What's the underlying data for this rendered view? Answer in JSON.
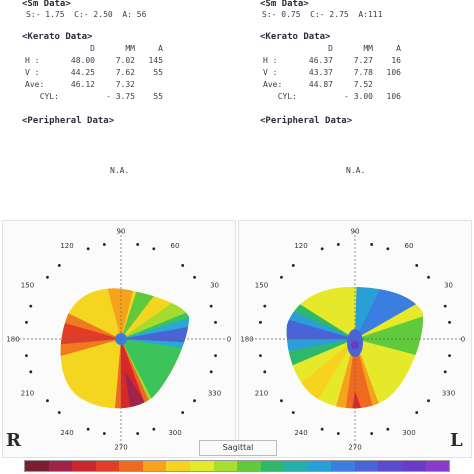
{
  "right_eye": {
    "sim_header": "<Sm Data>",
    "sim_line": "S:- 1.75  C:- 2.50  A: 56",
    "kerato_header": "<Kerato Data>",
    "columns": [
      "D",
      "MM",
      "A"
    ],
    "rows": [
      {
        "label": "H :",
        "d": "48.00",
        "mm": "7.02",
        "a": "145"
      },
      {
        "label": "V :",
        "d": "44.25",
        "mm": "7.62",
        "a": "55"
      },
      {
        "label": "Ave:",
        "d": "46.12",
        "mm": "7.32",
        "a": ""
      }
    ],
    "cyl_label": "CYL:",
    "cyl_value": "- 3.75",
    "cyl_axis": "55",
    "peripheral_header": "<Peripheral Data>",
    "peripheral_value": "N.A.",
    "side_letter": "R"
  },
  "left_eye": {
    "sim_header": "<Sm Data>",
    "sim_line": "S:- 0.75  C:- 2.75  A:111",
    "kerato_header": "<Kerato Data>",
    "columns": [
      "D",
      "MM",
      "A"
    ],
    "rows": [
      {
        "label": "H :",
        "d": "46.37",
        "mm": "7.27",
        "a": "16"
      },
      {
        "label": "V :",
        "d": "43.37",
        "mm": "7.78",
        "a": "106"
      },
      {
        "label": "Ave:",
        "d": "44.87",
        "mm": "7.52",
        "a": ""
      }
    ],
    "cyl_label": "CYL:",
    "cyl_value": "- 3.00",
    "cyl_axis": "106",
    "peripheral_header": "<Peripheral Data>",
    "peripheral_value": "N.A.",
    "side_letter": "L"
  },
  "map": {
    "angles": [
      "90",
      "60",
      "30",
      "0",
      "330",
      "300",
      "270",
      "240",
      "210",
      "180",
      "150",
      "120"
    ],
    "mode_label": "Sagittal",
    "scale_colors": [
      "#7a1e32",
      "#a0244a",
      "#c8282e",
      "#e23b26",
      "#ee6a20",
      "#f5a31d",
      "#f7d21e",
      "#e6e92a",
      "#a9dd2e",
      "#5fcb3c",
      "#2fb86a",
      "#22b0a8",
      "#2a9fd6",
      "#3a7fe0",
      "#4a63d8",
      "#5a4ad0",
      "#6a3ac8",
      "#8a3ac8"
    ]
  }
}
